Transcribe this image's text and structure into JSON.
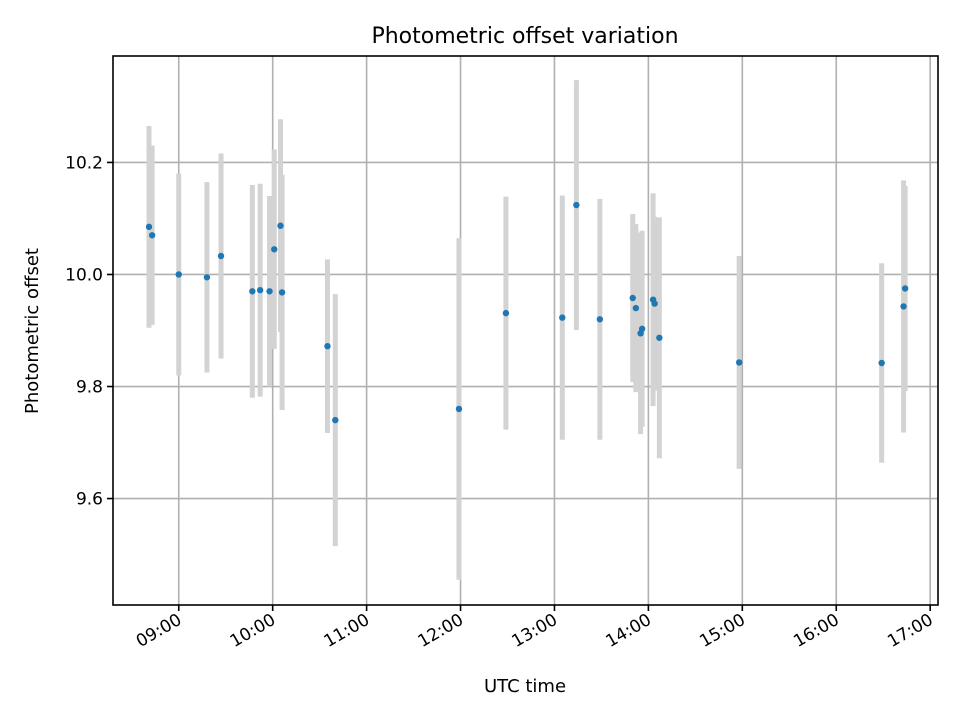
{
  "chart_data": {
    "type": "scatter",
    "title": "Photometric offset variation",
    "xlabel": "UTC time",
    "ylabel": "Photometric offset",
    "xlim": [
      "08:18",
      "17:05"
    ],
    "ylim": [
      9.41,
      10.39
    ],
    "x_ticks": [
      "09:00",
      "10:00",
      "11:00",
      "12:00",
      "13:00",
      "14:00",
      "15:00",
      "16:00",
      "17:00"
    ],
    "y_ticks": [
      9.6,
      9.8,
      10.0,
      10.2
    ],
    "grid": true,
    "colors": {
      "point": "#1f77b4",
      "errorbar": "#d3d3d3"
    },
    "points": [
      {
        "x": "08:41",
        "y": 10.085,
        "err": 0.18
      },
      {
        "x": "08:43",
        "y": 10.07,
        "err": 0.16
      },
      {
        "x": "09:00",
        "y": 10.0,
        "err": 0.18
      },
      {
        "x": "09:18",
        "y": 9.995,
        "err": 0.17
      },
      {
        "x": "09:27",
        "y": 10.033,
        "err": 0.183
      },
      {
        "x": "09:47",
        "y": 9.97,
        "err": 0.19
      },
      {
        "x": "09:52",
        "y": 9.972,
        "err": 0.19
      },
      {
        "x": "09:58",
        "y": 9.97,
        "err": 0.17
      },
      {
        "x": "10:01",
        "y": 10.045,
        "err": 0.178
      },
      {
        "x": "10:05",
        "y": 10.087,
        "err": 0.19
      },
      {
        "x": "10:06",
        "y": 9.968,
        "err": 0.21
      },
      {
        "x": "10:35",
        "y": 9.872,
        "err": 0.155
      },
      {
        "x": "10:40",
        "y": 9.74,
        "err": 0.225
      },
      {
        "x": "11:59",
        "y": 9.76,
        "err": 0.305
      },
      {
        "x": "12:29",
        "y": 9.931,
        "err": 0.208
      },
      {
        "x": "13:05",
        "y": 9.923,
        "err": 0.218
      },
      {
        "x": "13:14",
        "y": 10.124,
        "err": 0.223
      },
      {
        "x": "13:29",
        "y": 9.92,
        "err": 0.215
      },
      {
        "x": "13:50",
        "y": 9.958,
        "err": 0.15
      },
      {
        "x": "13:52",
        "y": 9.94,
        "err": 0.15
      },
      {
        "x": "13:55",
        "y": 9.895,
        "err": 0.18
      },
      {
        "x": "13:56",
        "y": 9.903,
        "err": 0.175
      },
      {
        "x": "14:03",
        "y": 9.955,
        "err": 0.19
      },
      {
        "x": "14:04",
        "y": 9.948,
        "err": 0.155
      },
      {
        "x": "14:07",
        "y": 9.887,
        "err": 0.215
      },
      {
        "x": "14:58",
        "y": 9.843,
        "err": 0.19
      },
      {
        "x": "16:29",
        "y": 9.842,
        "err": 0.178
      },
      {
        "x": "16:43",
        "y": 9.943,
        "err": 0.225
      },
      {
        "x": "16:44",
        "y": 9.975,
        "err": 0.183
      }
    ]
  }
}
